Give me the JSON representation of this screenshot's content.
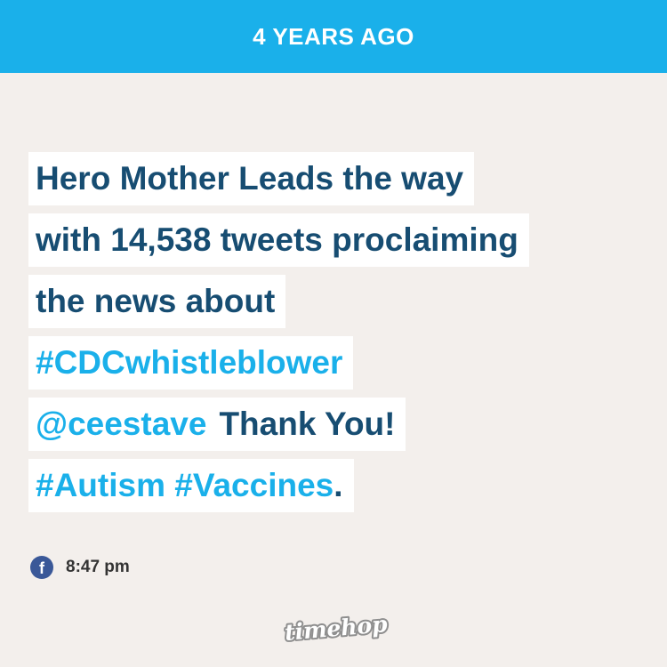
{
  "header": {
    "label": "4 YEARS AGO"
  },
  "post": {
    "line1": "Hero Mother Leads the way",
    "line2": "with 14,538 tweets proclaiming",
    "line3": "the news about",
    "line4_tag": "#CDCwhistleblower",
    "line5_mention": "@ceestave",
    "line5_text": "Thank You!",
    "line6_tag1": "#Autism",
    "line6_tag2": "#Vaccines",
    "line6_end": "."
  },
  "meta": {
    "source_icon": "facebook-icon",
    "source_glyph": "f",
    "time": "8:47 pm"
  },
  "logo": {
    "text": "timehop"
  },
  "colors": {
    "header_bg": "#1ab0ea",
    "text_dark": "#174d72",
    "link_blue": "#1ab0ea",
    "page_bg": "#f3efec",
    "facebook": "#3a5898"
  }
}
